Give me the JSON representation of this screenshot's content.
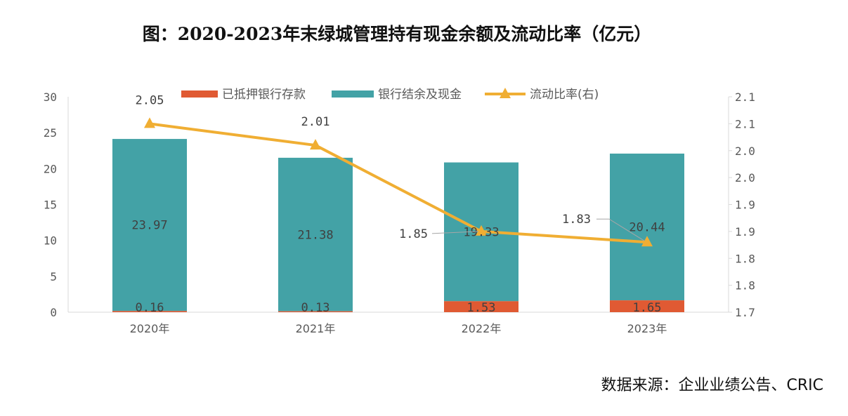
{
  "chart_data": {
    "type": "bar",
    "title": "图：2020-2023年末绿城管理持有现金余额及流动比率（亿元）",
    "categories": [
      "2020年",
      "2021年",
      "2022年",
      "2023年"
    ],
    "series": [
      {
        "name": "已抵押银行存款",
        "kind": "bar",
        "stack": "cash",
        "axis": "left",
        "color": "#E05A33",
        "values": [
          0.16,
          0.13,
          1.53,
          1.65
        ],
        "labels": [
          "0.16",
          "0.13",
          "1.53",
          "1.65"
        ]
      },
      {
        "name": "银行结余及现金",
        "kind": "bar",
        "stack": "cash",
        "axis": "left",
        "color": "#43A2A6",
        "values": [
          23.97,
          21.38,
          19.33,
          20.44
        ],
        "labels": [
          "23.97",
          "21.38",
          "19.33",
          "20.44"
        ]
      },
      {
        "name": "流动比率(右)",
        "kind": "line",
        "axis": "right",
        "color": "#F0AE33",
        "values": [
          2.05,
          2.01,
          1.85,
          1.83
        ],
        "labels": [
          "2.05",
          "2.01",
          "1.85",
          "1.83"
        ]
      }
    ],
    "y_left": {
      "min": 0,
      "max": 30,
      "ticks": [
        "0",
        "5",
        "10",
        "15",
        "20",
        "25",
        "30"
      ]
    },
    "y_right": {
      "min": 1.7,
      "max": 2.1,
      "ticks": [
        "1.7",
        "1.8",
        "1.8",
        "1.9",
        "1.9",
        "2.0",
        "2.0",
        "2.1",
        "2.1"
      ]
    },
    "legend_position": "top",
    "grid": false,
    "source": "数据来源：企业业绩公告、CRIC"
  }
}
